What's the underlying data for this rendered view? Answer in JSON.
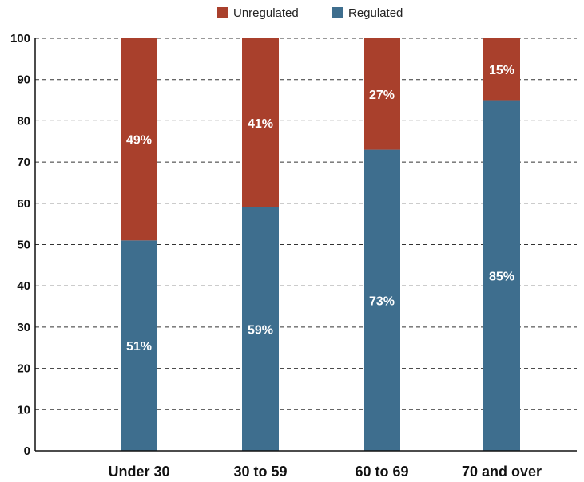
{
  "chart_data": {
    "type": "bar",
    "stacked": true,
    "categories": [
      "Under 30",
      "30 to 59",
      "60 to 69",
      "70 and over"
    ],
    "series": [
      {
        "name": "Regulated",
        "values": [
          51,
          59,
          73,
          85
        ],
        "labels": [
          "51%",
          "59%",
          "73%",
          "85%"
        ],
        "color": "#3e6e8e"
      },
      {
        "name": "Unregulated",
        "values": [
          49,
          41,
          27,
          15
        ],
        "labels": [
          "49%",
          "41%",
          "27%",
          "15%"
        ],
        "color": "#a9402c"
      }
    ],
    "legend": {
      "placement": "top-center",
      "order": [
        "Unregulated",
        "Regulated"
      ]
    },
    "ylim": [
      0,
      100
    ],
    "yticks": [
      "0",
      "10",
      "20",
      "30",
      "40",
      "50",
      "60",
      "70",
      "80",
      "90",
      "100"
    ],
    "grid": true,
    "title": "",
    "xlabel": "",
    "ylabel": ""
  }
}
